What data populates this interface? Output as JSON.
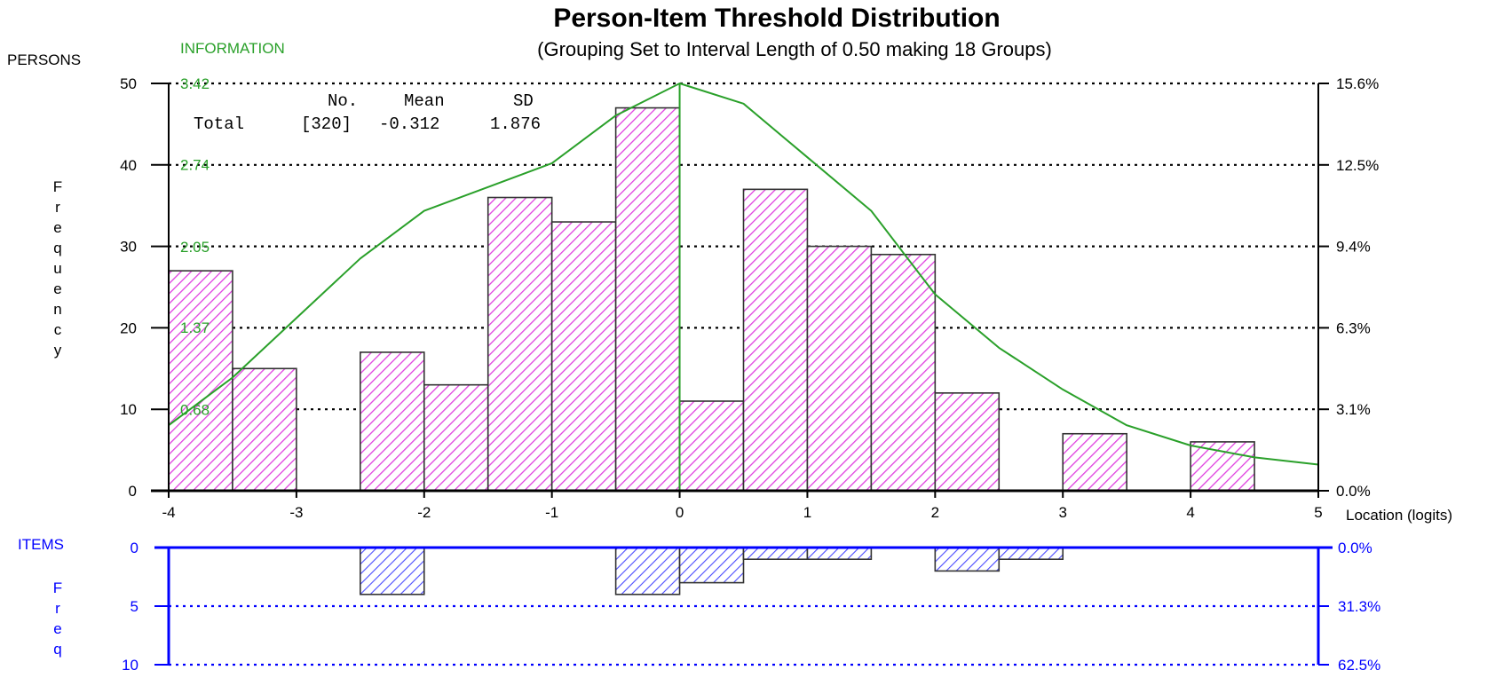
{
  "chart_data": {
    "type": "bar",
    "title": "Person-Item Threshold Distribution",
    "subtitle": "(Grouping Set to Interval Length of  0.50  making  18  Groups)",
    "xlabel": "Location (logits)",
    "x_range": [
      -4,
      5
    ],
    "x_ticks": [
      "-4",
      "-3",
      "-2",
      "-1",
      "0",
      "1",
      "2",
      "3",
      "4",
      "5"
    ],
    "bin_width": 0.5,
    "bin_starts": [
      -4,
      -3.5,
      -3,
      -2.5,
      -2,
      -1.5,
      -1,
      -0.5,
      0,
      0.5,
      1,
      1.5,
      2,
      2.5,
      3,
      3.5,
      4,
      4.5
    ],
    "persons": {
      "label": "PERSONS",
      "ylabel": "Frequency",
      "ylim": [
        0,
        50
      ],
      "y_ticks": [
        "0",
        "10",
        "20",
        "30",
        "40",
        "50"
      ],
      "values": [
        27,
        15,
        0,
        17,
        13,
        36,
        33,
        47,
        11,
        37,
        30,
        29,
        12,
        0,
        7,
        0,
        6,
        0
      ],
      "right_ticks": [
        "0.0%",
        "3.1%",
        "6.3%",
        "9.4%",
        "12.5%",
        "15.6%"
      ],
      "info_label": "INFORMATION",
      "info_ticks": [
        "0.68",
        "1.37",
        "2.05",
        "2.74",
        "3.42"
      ],
      "information_curve": {
        "x": [
          -4,
          -3.5,
          -3,
          -2.5,
          -2,
          -1.5,
          -1,
          -0.5,
          0,
          0.5,
          1,
          1.5,
          2,
          2.5,
          3,
          3.5,
          4,
          4.5,
          5
        ],
        "y": [
          0.55,
          0.95,
          1.45,
          1.95,
          2.35,
          2.55,
          2.75,
          3.15,
          3.42,
          3.25,
          2.8,
          2.35,
          1.65,
          1.2,
          0.85,
          0.55,
          0.38,
          0.28,
          0.22
        ]
      },
      "stats": {
        "headers": [
          "No.",
          "Mean",
          "SD"
        ],
        "row_label": "Total",
        "no": "[320]",
        "mean": "-0.312",
        "sd": "1.876"
      },
      "bar_color": "#e040e0"
    },
    "items": {
      "label": "ITEMS",
      "ylabel": "Freq",
      "ylim": [
        0,
        10
      ],
      "y_ticks": [
        "0",
        "5",
        "10"
      ],
      "values": [
        0,
        0,
        0,
        4,
        0,
        0,
        0,
        4,
        3,
        1,
        1,
        0,
        2,
        1,
        0,
        0,
        0,
        0
      ],
      "right_ticks": [
        "0.0%",
        "31.3%",
        "62.5%"
      ],
      "bar_color": "#3a3aff"
    },
    "colors": {
      "axis_items": "#0000ff",
      "info": "#2aa02a",
      "grid": "#000000"
    }
  }
}
